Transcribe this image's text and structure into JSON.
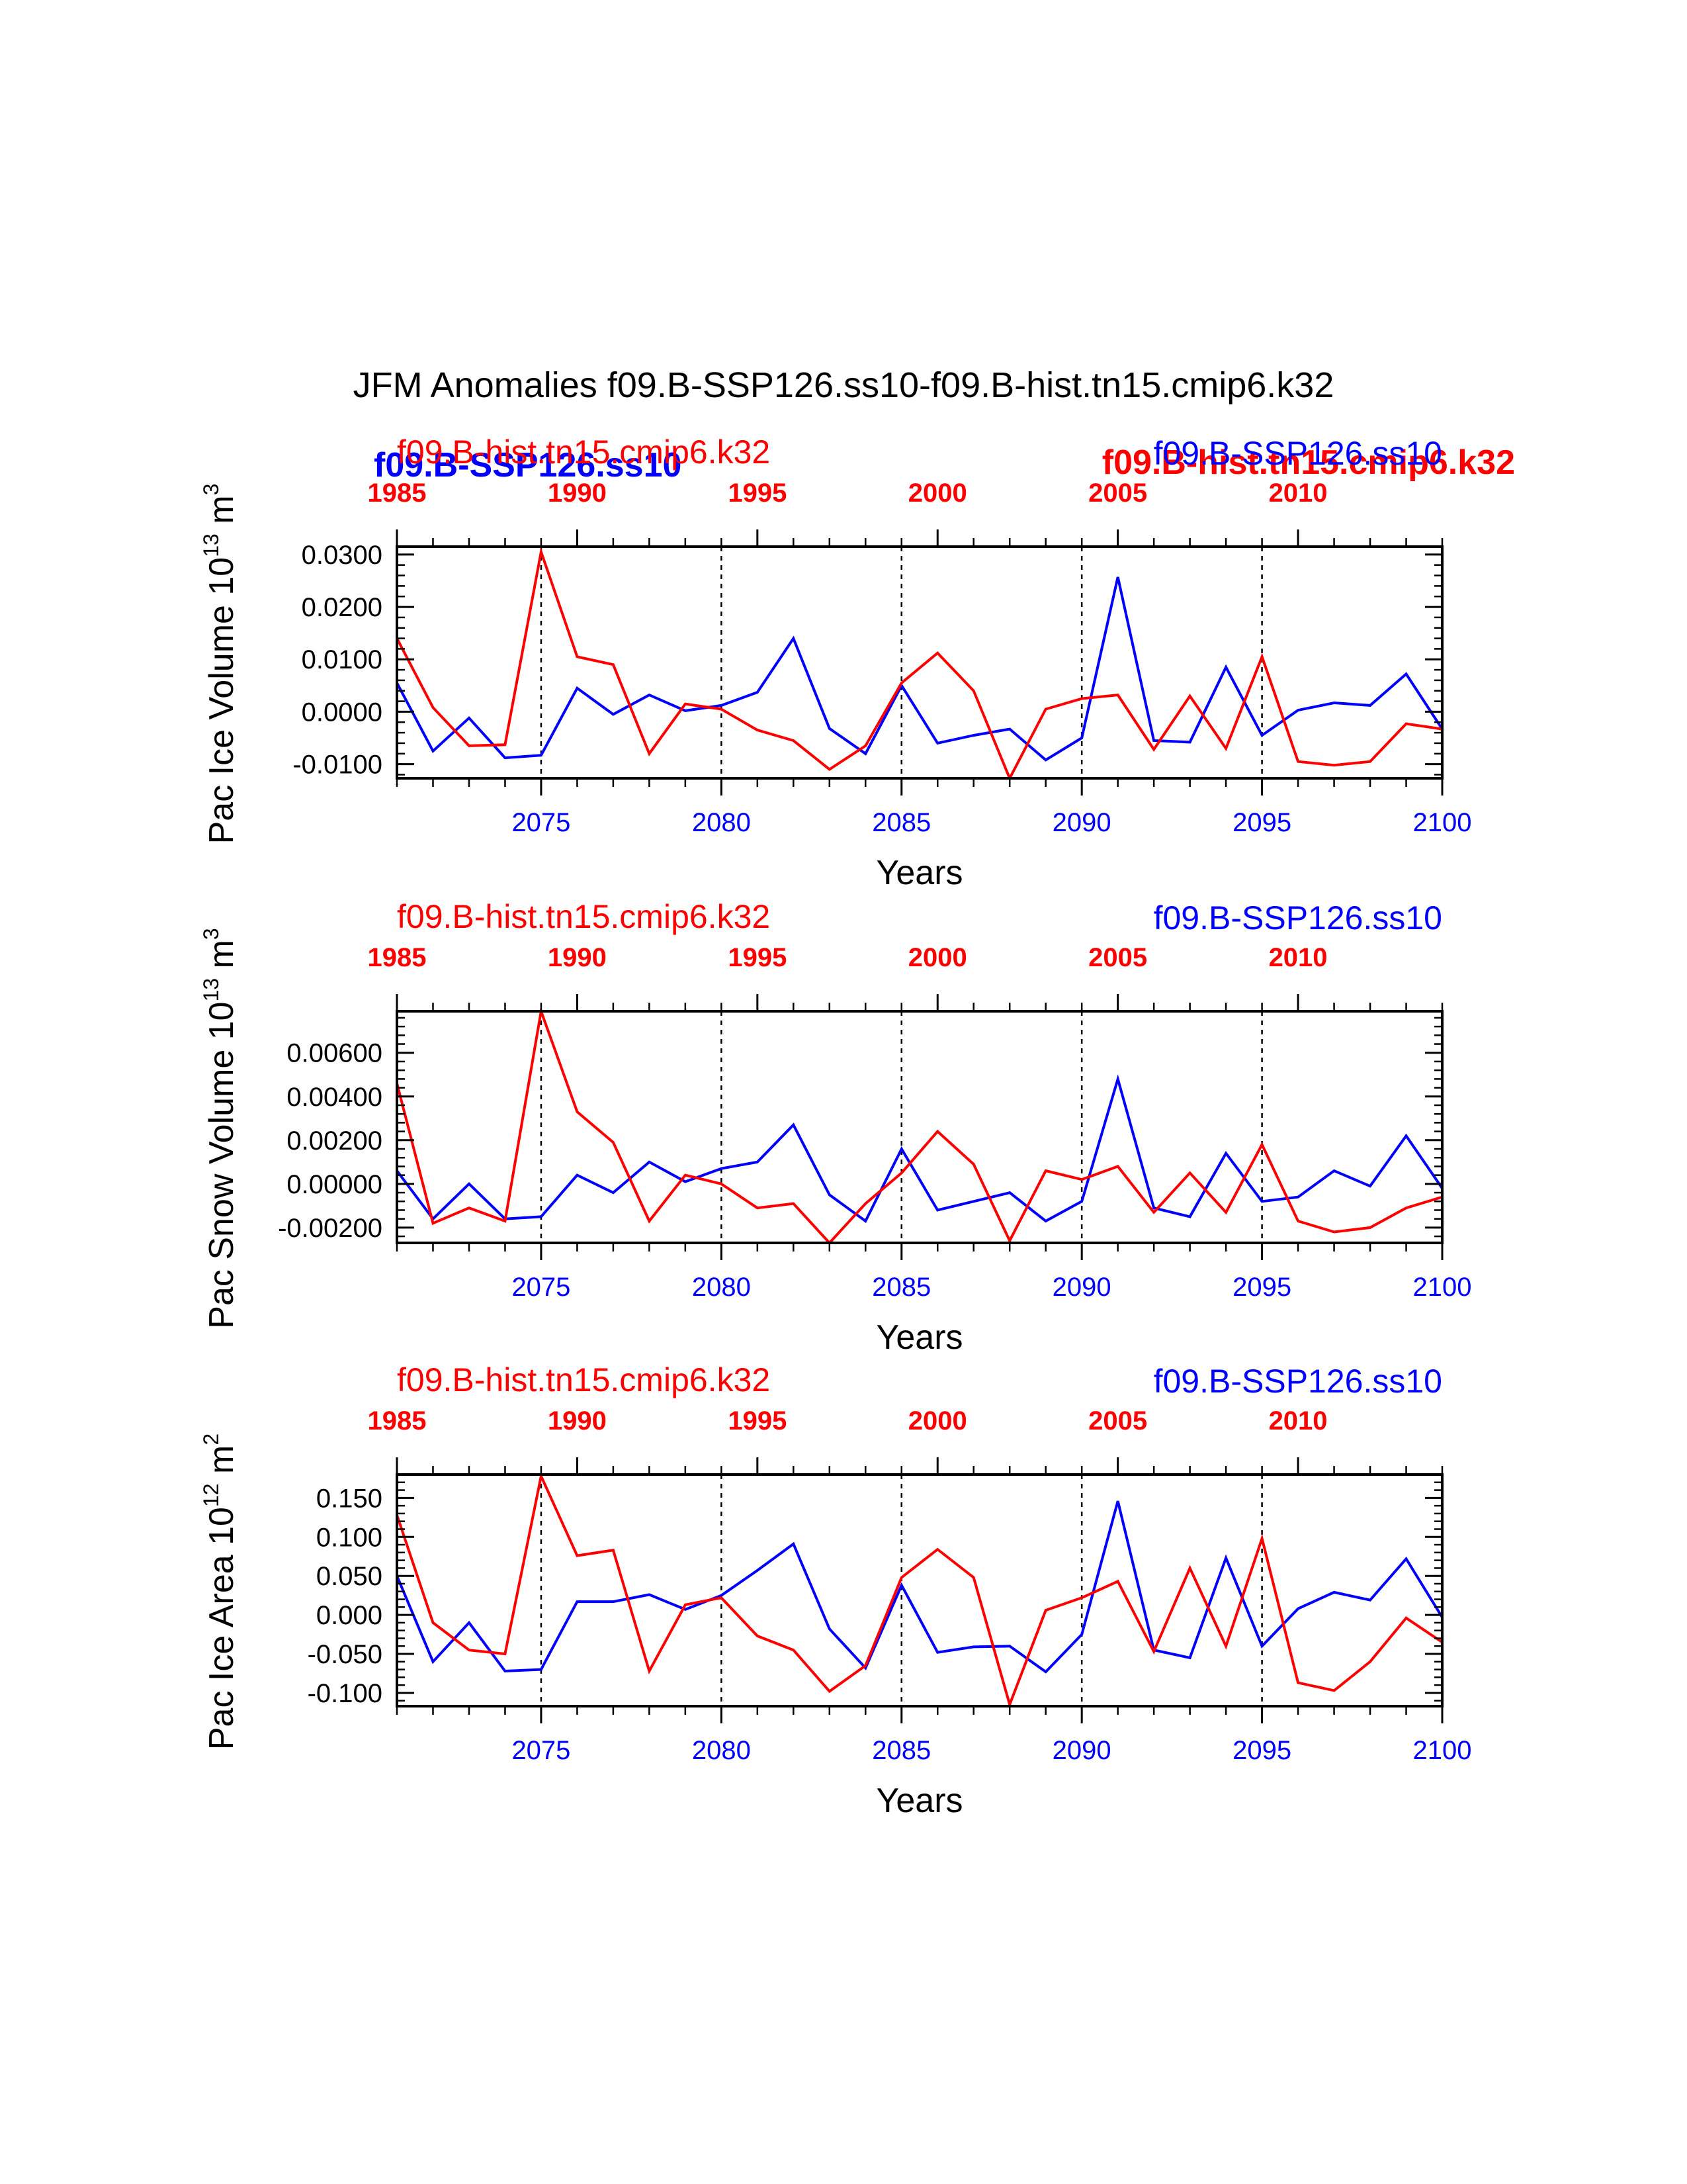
{
  "title": "JFM Anomalies f09.B-SSP126.ss10-f09.B-hist.tn15.cmip6.k32",
  "colors": {
    "ssp": "#0000ff",
    "hist": "#ff0000",
    "axis": "#000000"
  },
  "overlay_labels": {
    "ssp_bold": "f09.B-SSP126.ss10",
    "hist_bold": "f09.B-hist.tn15.cmip6.k32"
  },
  "chart_data": [
    {
      "type": "line",
      "ylabel_main": "Pac Ice Volume 10",
      "ylabel_exp": "13",
      "ylabel_unit": " m",
      "ylabel_unit_exp": "3",
      "xlabel": "Years",
      "ylim": [
        -0.0127,
        0.0315
      ],
      "yticks": [
        -0.01,
        0.0,
        0.01,
        0.02,
        0.03
      ],
      "ytick_labels": [
        "-0.0100",
        "0.0000",
        "0.0100",
        "0.0200",
        "0.0300"
      ],
      "x_bottom": {
        "range": [
          2071,
          2100
        ],
        "ticks": [
          2075,
          2080,
          2085,
          2090,
          2095,
          2100
        ],
        "labels": [
          "2075",
          "2080",
          "2085",
          "2090",
          "2095",
          "2100"
        ]
      },
      "x_top": {
        "offset": 86,
        "ticks": [
          1985,
          1990,
          1995,
          2000,
          2005,
          2010
        ],
        "labels": [
          "1985",
          "1990",
          "1995",
          "2000",
          "2005",
          "2010"
        ]
      },
      "ref_lines_x": [
        2075,
        2080,
        2085,
        2090,
        2095
      ],
      "series": [
        {
          "name": "f09.B-SSP126.ss10",
          "role": "ssp",
          "x_start": 2071,
          "values": [
            0.0055,
            -0.0075,
            -0.0012,
            -0.0088,
            -0.0083,
            0.0045,
            -0.0005,
            0.0032,
            0.0002,
            0.0012,
            0.0037,
            0.014,
            -0.0032,
            -0.008,
            0.005,
            -0.006,
            -0.0045,
            -0.0033,
            -0.0092,
            -0.005,
            0.0257,
            -0.0055,
            -0.0058,
            0.0085,
            -0.0045,
            0.0003,
            0.0017,
            0.0012,
            0.0072,
            -0.0033
          ]
        },
        {
          "name": "f09.B-hist.tn15.cmip6.k32",
          "role": "hist",
          "x_start": 2071,
          "values": [
            0.014,
            0.0008,
            -0.0065,
            -0.0063,
            0.0305,
            0.0105,
            0.009,
            -0.008,
            0.0015,
            0.0005,
            -0.0035,
            -0.0055,
            -0.011,
            -0.0065,
            0.0055,
            0.0112,
            0.004,
            -0.0127,
            0.0005,
            0.0025,
            0.0032,
            -0.0072,
            0.003,
            -0.007,
            0.0105,
            -0.0095,
            -0.0102,
            -0.0095,
            -0.0023,
            -0.0033
          ]
        }
      ],
      "label_ssp": "f09.B-SSP126.ss10",
      "label_hist": "f09.B-hist.tn15.cmip6.k32"
    },
    {
      "type": "line",
      "ylabel_main": "Pac Snow Volume 10",
      "ylabel_exp": "13",
      "ylabel_unit": " m",
      "ylabel_unit_exp": "3",
      "xlabel": "Years",
      "ylim": [
        -0.0027,
        0.0079
      ],
      "yticks": [
        -0.002,
        0.0,
        0.002,
        0.004,
        0.006
      ],
      "ytick_labels": [
        "-0.00200",
        "0.00000",
        "0.00200",
        "0.00400",
        "0.00600"
      ],
      "x_bottom": {
        "range": [
          2071,
          2100
        ],
        "ticks": [
          2075,
          2080,
          2085,
          2090,
          2095,
          2100
        ],
        "labels": [
          "2075",
          "2080",
          "2085",
          "2090",
          "2095",
          "2100"
        ]
      },
      "x_top": {
        "offset": 86,
        "ticks": [
          1985,
          1990,
          1995,
          2000,
          2005,
          2010
        ],
        "labels": [
          "1985",
          "1990",
          "1995",
          "2000",
          "2005",
          "2010"
        ]
      },
      "ref_lines_x": [
        2075,
        2080,
        2085,
        2090,
        2095
      ],
      "series": [
        {
          "name": "f09.B-SSP126.ss10",
          "role": "ssp",
          "x_start": 2071,
          "values": [
            0.0006,
            -0.0016,
            0.0,
            -0.0016,
            -0.0015,
            0.0004,
            -0.0004,
            0.001,
            0.0001,
            0.0007,
            0.001,
            0.0027,
            -0.0005,
            -0.0017,
            0.0016,
            -0.0012,
            -0.0008,
            -0.0004,
            -0.0017,
            -0.0008,
            0.0048,
            -0.0011,
            -0.0015,
            0.0014,
            -0.0008,
            -0.0006,
            0.0006,
            -0.0001,
            0.0022,
            -0.0002
          ]
        },
        {
          "name": "f09.B-hist.tn15.cmip6.k32",
          "role": "hist",
          "x_start": 2071,
          "values": [
            0.0046,
            -0.0018,
            -0.0011,
            -0.0017,
            0.0079,
            0.0033,
            0.0019,
            -0.0017,
            0.0004,
            0.0,
            -0.0011,
            -0.0009,
            -0.0027,
            -0.0009,
            0.0005,
            0.0024,
            0.0009,
            -0.0026,
            0.0006,
            0.0002,
            0.0008,
            -0.0013,
            0.0005,
            -0.0013,
            0.0018,
            -0.0017,
            -0.0022,
            -0.002,
            -0.0011,
            -0.0006
          ]
        }
      ],
      "label_ssp": "f09.B-SSP126.ss10",
      "label_hist": "f09.B-hist.tn15.cmip6.k32"
    },
    {
      "type": "line",
      "ylabel_main": "Pac Ice Area 10",
      "ylabel_exp": "12",
      "ylabel_unit": " m",
      "ylabel_unit_exp": "2",
      "xlabel": "Years",
      "ylim": [
        -0.117,
        0.18
      ],
      "yticks": [
        -0.1,
        -0.05,
        0.0,
        0.05,
        0.1,
        0.15
      ],
      "ytick_labels": [
        "-0.100",
        "-0.050",
        "0.000",
        "0.050",
        "0.100",
        "0.150"
      ],
      "x_bottom": {
        "range": [
          2071,
          2100
        ],
        "ticks": [
          2075,
          2080,
          2085,
          2090,
          2095,
          2100
        ],
        "labels": [
          "2075",
          "2080",
          "2085",
          "2090",
          "2095",
          "2100"
        ]
      },
      "x_top": {
        "offset": 86,
        "ticks": [
          1985,
          1990,
          1995,
          2000,
          2005,
          2010
        ],
        "labels": [
          "1985",
          "1990",
          "1995",
          "2000",
          "2005",
          "2010"
        ]
      },
      "ref_lines_x": [
        2075,
        2080,
        2085,
        2090,
        2095
      ],
      "series": [
        {
          "name": "f09.B-SSP126.ss10",
          "role": "ssp",
          "x_start": 2071,
          "values": [
            0.05,
            -0.06,
            -0.01,
            -0.072,
            -0.07,
            0.017,
            0.017,
            0.026,
            0.007,
            0.025,
            0.057,
            0.091,
            -0.018,
            -0.068,
            0.038,
            -0.048,
            -0.041,
            -0.04,
            -0.073,
            -0.025,
            0.146,
            -0.045,
            -0.055,
            0.073,
            -0.04,
            0.008,
            0.029,
            0.019,
            0.072,
            -0.003
          ]
        },
        {
          "name": "f09.B-hist.tn15.cmip6.k32",
          "role": "hist",
          "x_start": 2071,
          "values": [
            0.128,
            -0.01,
            -0.045,
            -0.05,
            0.178,
            0.076,
            0.083,
            -0.072,
            0.013,
            0.022,
            -0.027,
            -0.045,
            -0.098,
            -0.065,
            0.048,
            0.084,
            0.048,
            -0.115,
            0.006,
            0.022,
            0.043,
            -0.047,
            0.06,
            -0.04,
            0.098,
            -0.087,
            -0.097,
            -0.06,
            -0.004,
            -0.035
          ]
        }
      ],
      "label_ssp": "f09.B-SSP126.ss10",
      "label_hist": "f09.B-hist.tn15.cmip6.k32"
    }
  ]
}
